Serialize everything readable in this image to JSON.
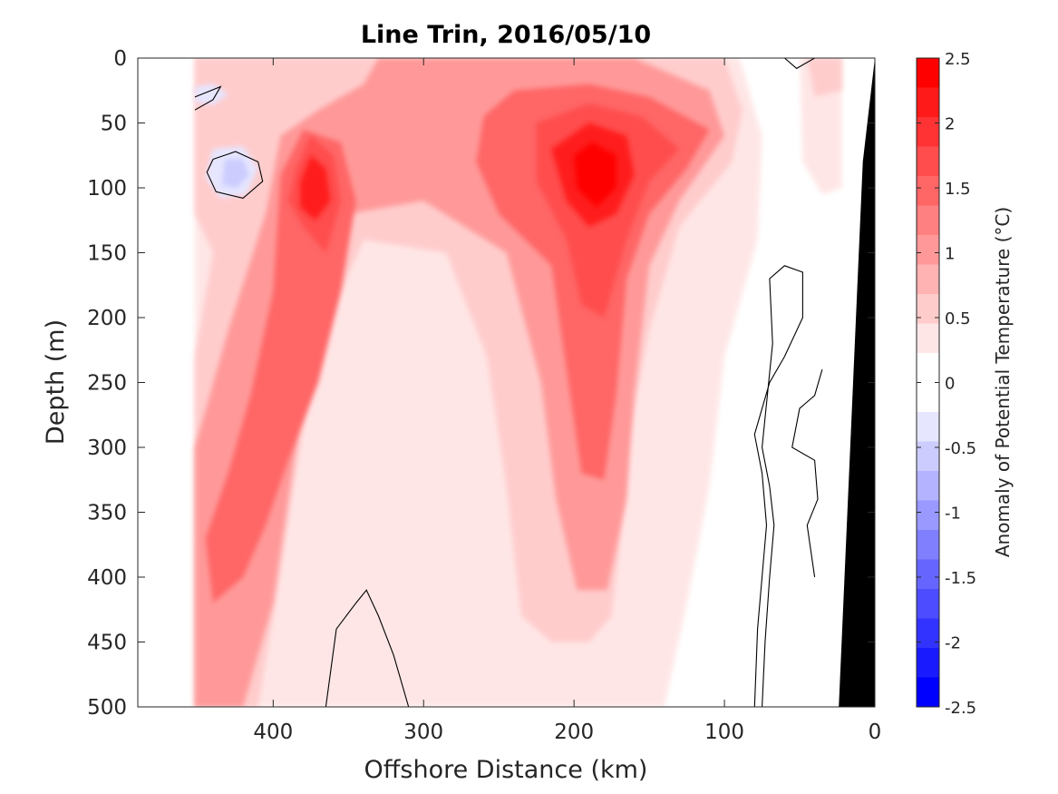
{
  "chart_data": {
    "type": "heatmap",
    "subtype": "filled-contour-section",
    "title": "Line Trin, 2016/05/10",
    "xlabel": "Offshore Distance (km)",
    "ylabel": "Depth (m)",
    "xlim": [
      490,
      0
    ],
    "ylim": [
      0,
      500
    ],
    "x_reversed": true,
    "y_reversed": true,
    "x_ticks": [
      400,
      300,
      200,
      100,
      0
    ],
    "x_tick_labels": [
      "400",
      "300",
      "200",
      "100",
      "0"
    ],
    "y_ticks": [
      0,
      50,
      100,
      150,
      200,
      250,
      300,
      350,
      400,
      450,
      500
    ],
    "y_tick_labels": [
      "0",
      "50",
      "100",
      "150",
      "200",
      "250",
      "300",
      "350",
      "400",
      "450",
      "500"
    ],
    "grid": false,
    "colorbar": {
      "label": "Anomaly of Potential Temperature (°C)",
      "range": [
        -2.5,
        2.5
      ],
      "ticks": [
        2.5,
        2,
        1.5,
        1,
        0.5,
        0,
        -0.5,
        -1,
        -1.5,
        -2,
        -2.5
      ],
      "tick_labels": [
        "2.5",
        "2",
        "1.5",
        "1",
        "0.5",
        "0",
        "-0.5",
        "-1",
        "-1.5",
        "-2",
        "-2.5"
      ],
      "levels": 20,
      "colors_top_to_bottom": [
        "#ff0000",
        "#ff1a1a",
        "#ff3333",
        "#ff4d4d",
        "#ff6666",
        "#ff8080",
        "#ff9999",
        "#ffb3b3",
        "#ffcccc",
        "#ffe6e6",
        "#ffffff",
        "#ffffff",
        "#e6e6ff",
        "#ccccff",
        "#b3b3ff",
        "#9999ff",
        "#8080ff",
        "#6666ff",
        "#4d4dff",
        "#3333ff",
        "#1a1aff",
        "#0000ff"
      ]
    },
    "data_extent_km": [
      452,
      20
    ],
    "seafloor": {
      "color": "#000000",
      "surface_km": 0,
      "bottom_km": 24
    },
    "features": [
      {
        "kind": "warm-core",
        "x_km": 185,
        "depth_m": 85,
        "anomaly": 2.5
      },
      {
        "kind": "warm-core",
        "x_km": 375,
        "depth_m": 95,
        "anomaly": 2.3
      },
      {
        "kind": "warm-tongue",
        "x_km": 185,
        "depth_range_m": [
          60,
          400
        ],
        "anomaly": 1.0
      },
      {
        "kind": "warm-tongue",
        "x_km": 415,
        "depth_range_m": [
          0,
          500
        ],
        "anomaly": 1.0
      },
      {
        "kind": "cold-anomaly",
        "x_km": 425,
        "depth_m": 88,
        "anomaly": -0.6
      },
      {
        "kind": "cold-anomaly",
        "x_km": 440,
        "depth_m": 28,
        "anomaly": -0.3
      },
      {
        "kind": "neutral-region",
        "x_km": 305,
        "depth_range_m": [
          120,
          500
        ],
        "anomaly": 0
      }
    ]
  }
}
